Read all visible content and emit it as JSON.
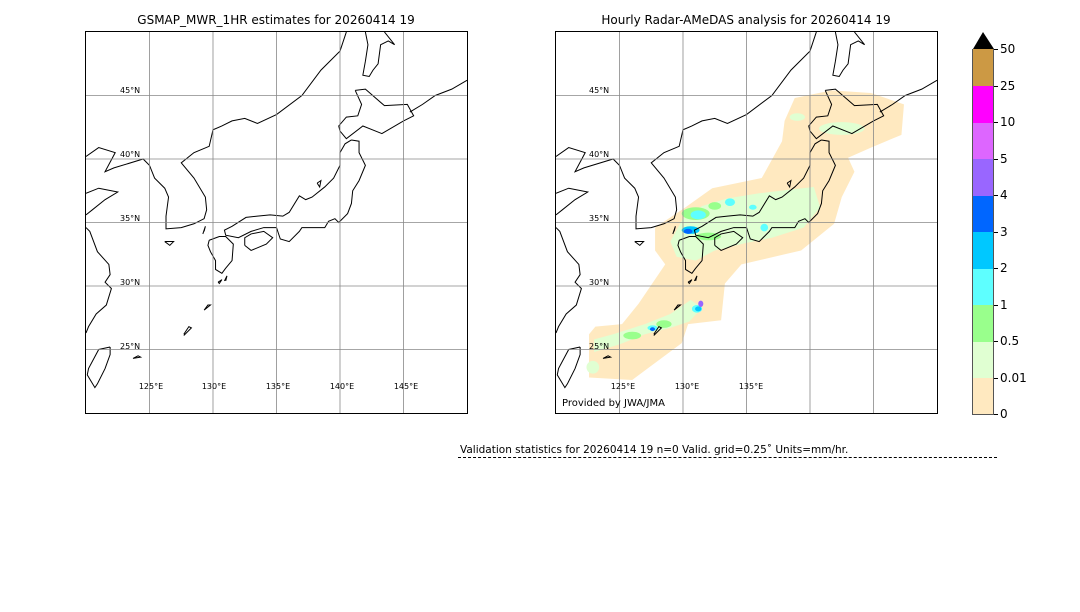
{
  "left_panel": {
    "title": "GSMAP_MWR_1HR estimates for 20260414 19",
    "lat_labels": [
      "45°N",
      "40°N",
      "35°N",
      "30°N",
      "25°N"
    ],
    "lon_labels": [
      "125°E",
      "130°E",
      "135°E",
      "140°E",
      "145°E"
    ]
  },
  "right_panel": {
    "title": "Hourly Radar-AMeDAS analysis for 20260414 19",
    "lat_labels": [
      "45°N",
      "40°N",
      "35°N",
      "30°N",
      "25°N"
    ],
    "lon_labels": [
      "125°E",
      "130°E",
      "135°E"
    ],
    "credit": "Provided by JWA/JMA"
  },
  "map_extent": {
    "lon": [
      120,
      150
    ],
    "lat": [
      20,
      50
    ],
    "grid_lon": [
      125,
      130,
      135,
      140,
      145
    ],
    "grid_lat": [
      25,
      30,
      35,
      40,
      45
    ]
  },
  "colorbar": {
    "labels": [
      "0",
      "0.01",
      "0.5",
      "1",
      "2",
      "3",
      "4",
      "5",
      "10",
      "25",
      "50"
    ],
    "colors": [
      "#ffe9c0",
      "#e0ffd2",
      "#99ff8c",
      "#5effff",
      "#00c8ff",
      "#0066ff",
      "#9966ff",
      "#dd66ff",
      "#ff00ff",
      "#cc9944"
    ],
    "extend_color": "#000000"
  },
  "validation": {
    "text": "Validation statistics for 20260414 19  n=0 Valid. grid=0.25˚ Units=mm/hr."
  }
}
